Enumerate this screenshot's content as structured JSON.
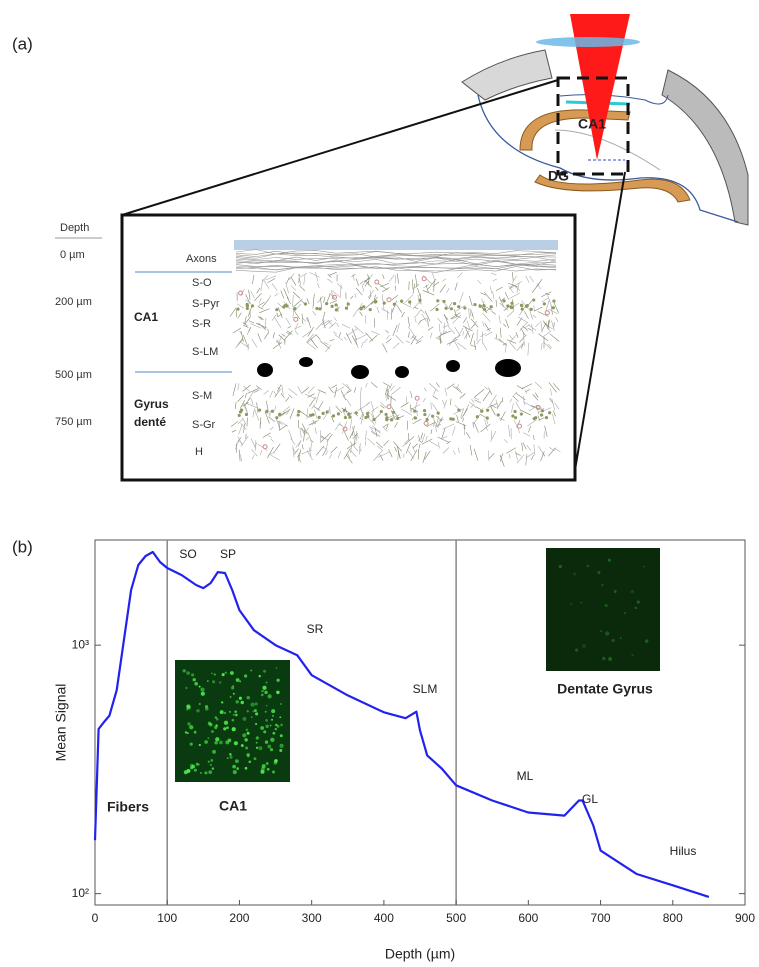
{
  "panel_a": {
    "label": "(a)",
    "depth_header": "Depth",
    "depths": [
      "0 µm",
      "200 µm",
      "500 µm",
      "750 µm"
    ],
    "layers": [
      "Axons",
      "S-O",
      "S-Pyr",
      "S-R",
      "S-LM",
      "S-M",
      "S-Gr",
      "H"
    ],
    "regions": [
      "CA1",
      "Gyrus",
      "denté"
    ],
    "slice_labels": [
      "CA1",
      "DG"
    ]
  },
  "chart_data": {
    "type": "line",
    "panel_label": "(b)",
    "x_label": "Depth (µm)",
    "y_label": "Mean Signal",
    "x": [
      0,
      5,
      12,
      20,
      30,
      40,
      50,
      60,
      70,
      80,
      90,
      100,
      120,
      140,
      150,
      160,
      170,
      180,
      190,
      200,
      220,
      250,
      280,
      300,
      350,
      400,
      430,
      445,
      450,
      460,
      480,
      500,
      550,
      600,
      650,
      670,
      675,
      690,
      700,
      750,
      800,
      850
    ],
    "series": [
      {
        "name": "Mean Signal",
        "color": "#2222ee",
        "values": [
          164,
          460,
          489,
          520,
          659,
          1047,
          1667,
          2102,
          2285,
          2371,
          2161,
          2045,
          1915,
          1746,
          1697,
          1778,
          1969,
          1951,
          1667,
          1384,
          1149,
          1000,
          911,
          757,
          628,
          537,
          508,
          540,
          454,
          360,
          319,
          273,
          237,
          212,
          206,
          237,
          237,
          188,
          149,
          120,
          108,
          97
        ]
      }
    ],
    "xlim": [
      0,
      900
    ],
    "xticks": [
      0,
      100,
      200,
      300,
      400,
      500,
      600,
      700,
      800,
      900
    ],
    "ylim": [
      90,
      2650
    ],
    "yscale": "log",
    "yticks": [
      {
        "value": 100,
        "label": "10²"
      },
      {
        "value": 1000,
        "label": "10³"
      }
    ],
    "vlines": [
      100,
      500
    ],
    "annotations": [
      "SO",
      "SP",
      "SR",
      "SLM",
      "ML",
      "GL",
      "Hilus",
      "Fibers",
      "CA1",
      "Dentate Gyrus"
    ]
  }
}
